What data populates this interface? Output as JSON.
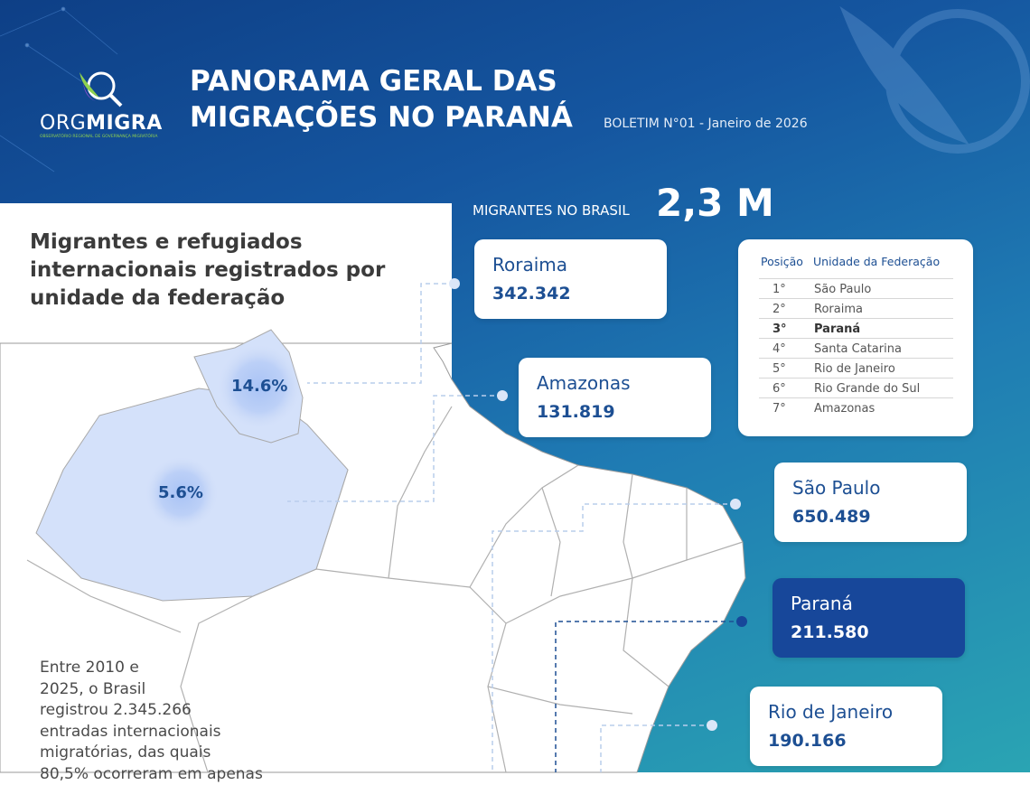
{
  "header": {
    "logo_org": "ORG",
    "logo_migra": "MIGRA",
    "logo_subtitle": "OBSERVATÓRIO REGIONAL DE GOVERNANÇA MIGRATÓRIA",
    "title_lines": [
      "PANORAMA GERAL DAS",
      "MIGRAÇÕES NO PARANÁ"
    ],
    "bulletin": "BOLETIM N°01 - Janeiro de 2026"
  },
  "total": {
    "label": "MIGRANTES NO BRASIL",
    "value": "2,3 M"
  },
  "section_title": "Migrantes e refugiados internacionais registrados por unidade da federação",
  "map_labels": [
    "14.6%",
    "5.6%"
  ],
  "cards": [
    {
      "name": "Roraima",
      "value": "342.342"
    },
    {
      "name": "Amazonas",
      "value": "131.819"
    },
    {
      "name": "São Paulo",
      "value": "650.489"
    },
    {
      "name": "Paraná",
      "value": "211.580"
    },
    {
      "name": "Rio de Janeiro",
      "value": "190.166"
    }
  ],
  "ranking": {
    "headers": [
      "Posição",
      "Unidade da Federação"
    ],
    "rows": [
      [
        "1°",
        "São Paulo"
      ],
      [
        "2°",
        "Roraima"
      ],
      [
        "3°",
        "Paraná"
      ],
      [
        "4°",
        "Santa Catarina"
      ],
      [
        "5°",
        "Rio de Janeiro"
      ],
      [
        "6°",
        "Rio Grande do Sul"
      ],
      [
        "7°",
        "Amazonas"
      ]
    ]
  },
  "body_lines": [
    "Entre 2010 e",
    "2025, o Brasil",
    "registrou 2.345.266",
    "entradas internacionais",
    "migratórias, das quais",
    "80,5% ocorreram em apenas"
  ]
}
